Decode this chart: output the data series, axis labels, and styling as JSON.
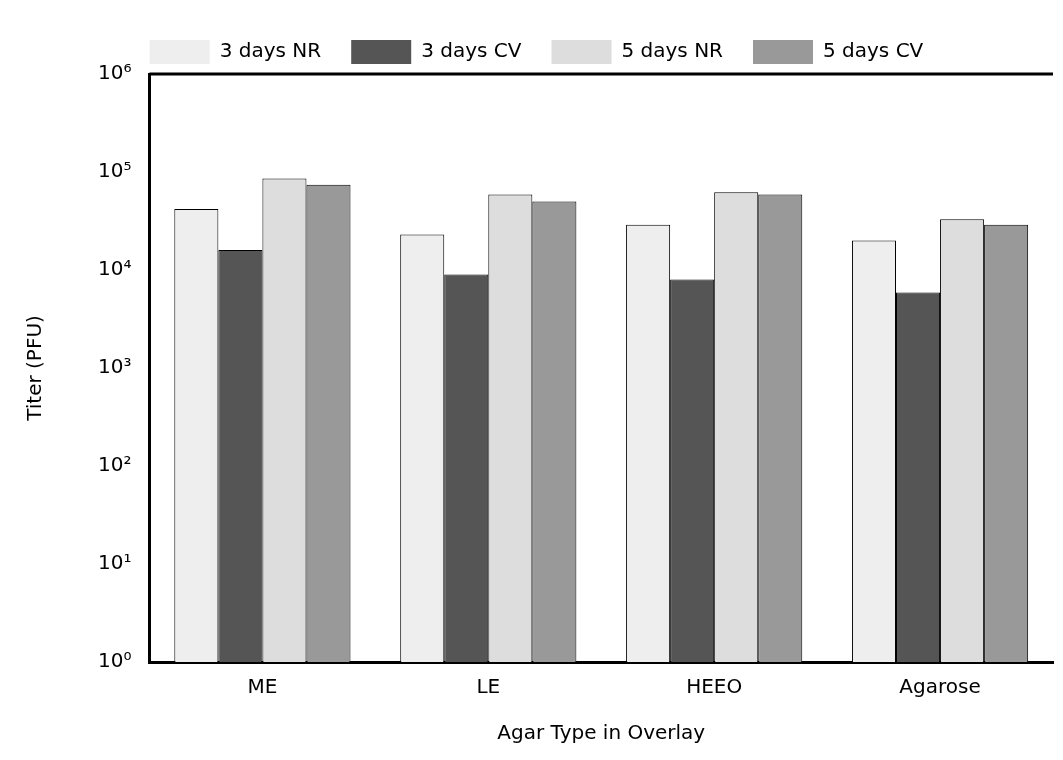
{
  "chart_data": {
    "type": "bar",
    "xlabel": "Agar Type in Overlay",
    "ylabel": "Titer (PFU)",
    "categories": [
      "ME",
      "LE",
      "HEEO",
      "Agarose"
    ],
    "series": [
      {
        "name": "3 days NR",
        "color": "#eeeeee",
        "values": [
          42000,
          23000,
          29000,
          20000
        ]
      },
      {
        "name": "3 days CV",
        "color": "#555555",
        "values": [
          16000,
          9000,
          8000,
          5900
        ]
      },
      {
        "name": "5 days NR",
        "color": "#dddddd",
        "values": [
          86000,
          59000,
          62000,
          33000
        ]
      },
      {
        "name": "5 days CV",
        "color": "#999999",
        "values": [
          74000,
          50000,
          59000,
          29000
        ]
      }
    ],
    "log": "y",
    "ylim": [
      1,
      1000000
    ],
    "yticks": [
      {
        "value": 1,
        "label": "10⁰"
      },
      {
        "value": 10,
        "label": "10¹"
      },
      {
        "value": 100,
        "label": "10²"
      },
      {
        "value": 1000,
        "label": "10³"
      },
      {
        "value": 10000,
        "label": "10⁴"
      },
      {
        "value": 100000,
        "label": "10⁵"
      },
      {
        "value": 1000000,
        "label": "10⁶"
      }
    ],
    "legend": "top",
    "grid": false
  }
}
